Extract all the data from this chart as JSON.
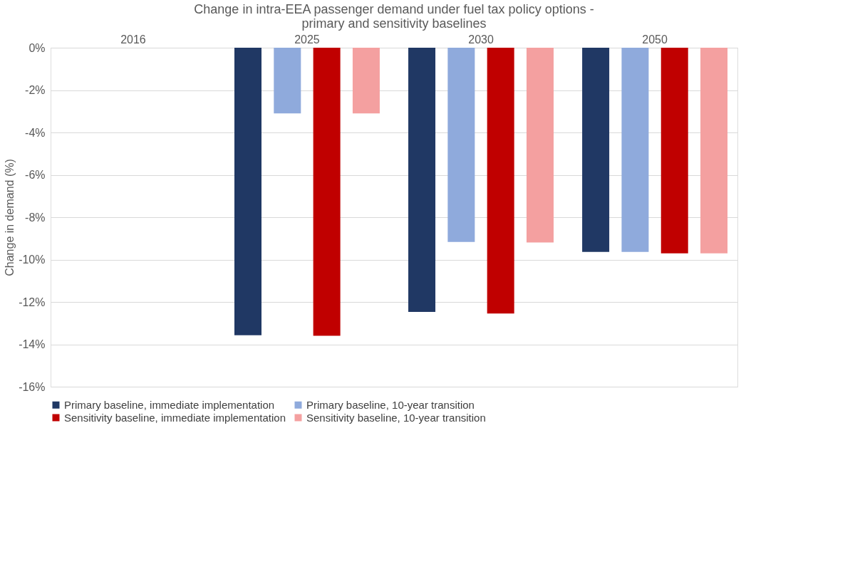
{
  "chart_data": {
    "type": "bar",
    "title": "Change in intra-EEA passenger demand under fuel tax policy options -\nprimary and sensitivity baselines",
    "ylabel": "Change in demand (%)",
    "categories": [
      "2016",
      "2025",
      "2030",
      "2050"
    ],
    "series": [
      {
        "name": "Primary baseline, immediate implementation",
        "color": "#203864",
        "values": [
          null,
          -13.57,
          -12.47,
          -9.64
        ]
      },
      {
        "name": "Primary baseline, 10-year transition",
        "color": "#8faadc",
        "values": [
          null,
          -3.1,
          -9.17,
          -9.64
        ]
      },
      {
        "name": "Sensitivity baseline, immediate implementation",
        "color": "#c00000",
        "values": [
          null,
          -13.6,
          -12.55,
          -9.71
        ]
      },
      {
        "name": "Sensitivity baseline, 10-year transition",
        "color": "#f4a0a0",
        "values": [
          null,
          -3.1,
          -9.19,
          -9.71
        ]
      }
    ],
    "ylim": [
      -16,
      0
    ],
    "yticks": [
      {
        "value": 0,
        "label": "0%"
      },
      {
        "value": -2,
        "label": "-2%"
      },
      {
        "value": -4,
        "label": "-4%"
      },
      {
        "value": -6,
        "label": "-6%"
      },
      {
        "value": -8,
        "label": "-8%"
      },
      {
        "value": -10,
        "label": "-10%"
      },
      {
        "value": -12,
        "label": "-12%"
      },
      {
        "value": -14,
        "label": "-14%"
      },
      {
        "value": -16,
        "label": "-16%"
      }
    ],
    "grid": "y",
    "legend": "bottom"
  }
}
